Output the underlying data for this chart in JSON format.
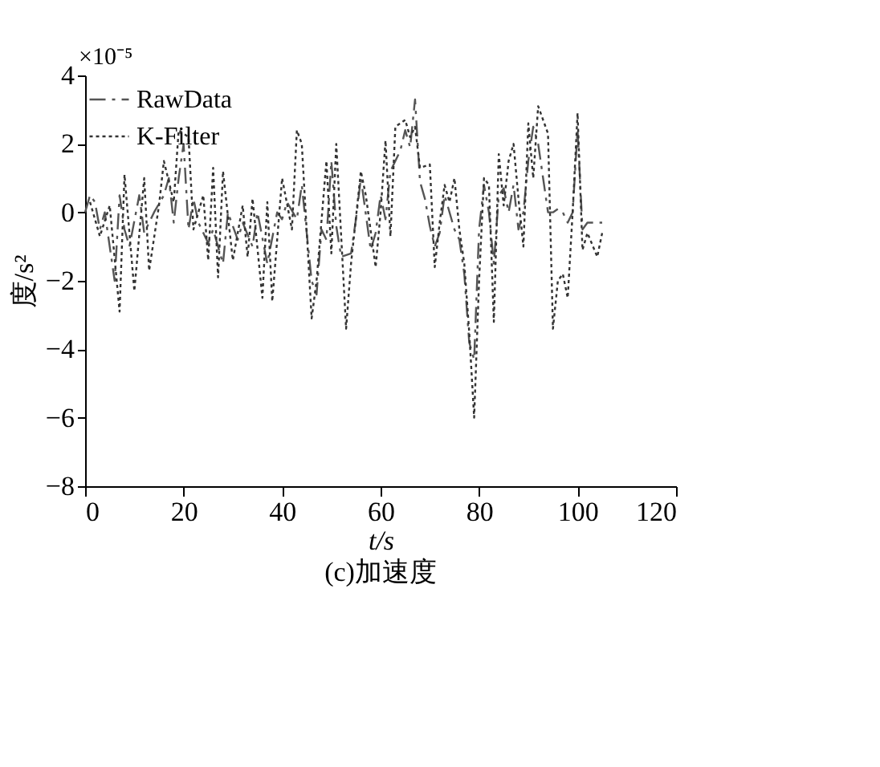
{
  "chart_data": {
    "type": "line",
    "title": "(c)加速度",
    "xlabel": "t/s",
    "ylabel": "度/s²",
    "annotations": [
      "×10⁻⁵"
    ],
    "xlim": [
      0,
      120
    ],
    "xticks": [
      0,
      20,
      40,
      60,
      80,
      100,
      120
    ],
    "ylim": [
      -8,
      4
    ],
    "yticks": [
      -8,
      -6,
      -4,
      -2,
      0,
      2,
      4
    ],
    "grid": false,
    "legend": "top left",
    "marker": "none",
    "series": [
      {
        "name": "RawData",
        "color": "#555555",
        "line_style": "dashdot",
        "x": [
          0,
          1,
          2,
          3,
          4,
          5,
          6,
          7,
          8,
          9,
          11,
          12,
          14,
          16,
          17,
          18,
          19,
          20,
          21,
          22,
          23,
          25,
          26,
          28,
          29,
          31,
          32,
          34,
          35,
          37,
          39,
          40,
          41,
          43,
          44,
          46,
          47,
          48,
          49,
          50,
          51,
          52,
          54,
          55,
          56,
          58,
          59,
          60,
          61,
          62,
          64,
          65,
          66,
          67,
          68,
          69,
          70,
          71,
          72,
          73,
          75,
          76,
          77,
          78,
          79,
          80,
          81,
          82,
          83,
          84,
          85,
          86,
          87,
          88,
          89,
          90,
          91,
          92,
          93,
          94,
          95,
          96,
          97,
          98,
          99,
          100,
          101,
          102,
          104,
          105
        ],
        "values": [
          0,
          0.5,
          0.3,
          -0.5,
          0,
          -1,
          -2,
          0.5,
          -0.5,
          -1,
          0.5,
          -0.6,
          0,
          0.5,
          1.0,
          -0.3,
          1.0,
          2.0,
          -0.5,
          0.4,
          -0.3,
          -0.9,
          -0.5,
          -1.5,
          0.0,
          -0.8,
          -0.3,
          -1.0,
          0.0,
          -1.5,
          0.0,
          -0.2,
          0.3,
          -0.2,
          0.8,
          -2.0,
          -2.4,
          -0.5,
          -0.8,
          1.5,
          -0.4,
          -1.3,
          -1.2,
          -0.2,
          1.0,
          -1.1,
          -0.6,
          0.5,
          -0.2,
          1.2,
          1.8,
          2.4,
          1.9,
          3.3,
          0.9,
          0.4,
          -0.4,
          -1.0,
          -0.6,
          0.5,
          -0.5,
          -0.8,
          -1.8,
          -3.8,
          -4.3,
          -0.5,
          0.8,
          0.0,
          -1.5,
          0.5,
          0.7,
          0,
          0.8,
          -0.5,
          0.0,
          1.5,
          2.5,
          2.0,
          1.0,
          0.0,
          0.0,
          0.1,
          0.0,
          -0.3,
          0.0,
          2.4,
          -0.5,
          -0.3,
          -0.3,
          -0.3
        ]
      },
      {
        "name": "K-Filter",
        "color": "#333333",
        "line_style": "dotted",
        "x": [
          1,
          3,
          5,
          7,
          8,
          10,
          12,
          13,
          15,
          16,
          18,
          19,
          21,
          22,
          24,
          25,
          26,
          27,
          28,
          30,
          32,
          33,
          34,
          36,
          37,
          38,
          40,
          42,
          43,
          44,
          46,
          47,
          49,
          50,
          51,
          53,
          54,
          56,
          57,
          59,
          60,
          61,
          62,
          63,
          65,
          66,
          67,
          68,
          70,
          71,
          72,
          73,
          74,
          75,
          76,
          77,
          78,
          79,
          80,
          81,
          82,
          83,
          84,
          85,
          86,
          87,
          88,
          89,
          90,
          91,
          92,
          94,
          95,
          96,
          97,
          98,
          99,
          100,
          101,
          102,
          104,
          105
        ],
        "values": [
          0.3,
          -0.7,
          0.2,
          -2.9,
          1.1,
          -2.3,
          1.0,
          -1.7,
          0.2,
          1.5,
          0.3,
          2.4,
          2.2,
          -0.5,
          0.5,
          -1.4,
          1.3,
          -1.9,
          1.2,
          -1.4,
          0.2,
          -1.3,
          0.4,
          -2.5,
          0.3,
          -2.6,
          1.0,
          -0.5,
          2.4,
          2.0,
          -3.1,
          -2.0,
          1.5,
          -1.2,
          2.0,
          -3.4,
          -1.5,
          1.2,
          0.5,
          -1.6,
          0.0,
          2.1,
          -0.7,
          2.5,
          2.7,
          2.2,
          2.5,
          1.3,
          1.4,
          -1.6,
          -0.3,
          0.8,
          0.3,
          1.0,
          -0.5,
          -1.5,
          -3.5,
          -6.0,
          -2.0,
          1.0,
          0.8,
          -3.2,
          1.7,
          0.2,
          1.5,
          2.0,
          0.4,
          -1.0,
          2.6,
          1.0,
          3.1,
          2.3,
          -3.4,
          -2.0,
          -1.8,
          -2.5,
          0.0,
          2.9,
          -1.1,
          -0.6,
          -1.3,
          -0.6
        ]
      }
    ]
  }
}
